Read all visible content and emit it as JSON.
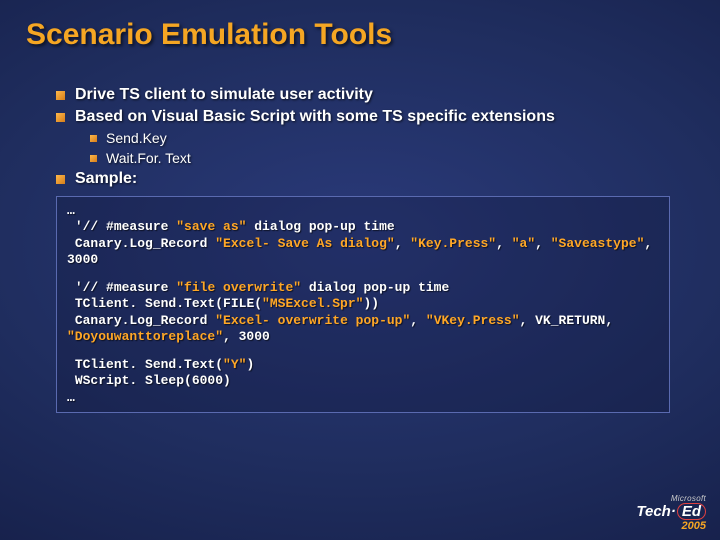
{
  "title": "Scenario Emulation Tools",
  "bullets": {
    "b1": "Drive TS client to simulate user activity",
    "b2": "Based on Visual Basic Script with some TS specific extensions",
    "b2a": "Send.Key",
    "b2b": "Wait.For. Text",
    "b3": "Sample:"
  },
  "code": {
    "l0": "…",
    "l1a": " '// #measure ",
    "l1b": "\"save as\"",
    "l1c": " dialog pop-up time",
    "l2a": " Canary.Log_Record ",
    "l2b": "\"Excel- Save As dialog\"",
    "l2c": ", ",
    "l2d": "\"Key.Press\"",
    "l2e": ", ",
    "l2f": "\"a\"",
    "l2g": ", ",
    "l2h": "\"Saveastype\"",
    "l2i": ", 3000",
    "l3a": " '// #measure ",
    "l3b": "\"file overwrite\"",
    "l3c": " dialog pop-up time",
    "l4a": " TClient. Send.Text(FILE(",
    "l4b": "\"MSExcel.Spr\"",
    "l4c": "))",
    "l5a": " Canary.Log_Record ",
    "l5b": "\"Excel- overwrite pop-up\"",
    "l5c": ", ",
    "l5d": "\"VKey.Press\"",
    "l5e": ", VK_RETURN, ",
    "l5f": "\"Doyouwanttoreplace\"",
    "l5g": ", 3000",
    "l6a": " TClient. Send.Text(",
    "l6b": "\"Y\"",
    "l6c": ")",
    "l7": " WScript. Sleep(6000)",
    "l8": "…"
  },
  "logo": {
    "ms": "Microsoft",
    "tech": "Tech·",
    "ed": "Ed",
    "year": "2005"
  },
  "colors": {
    "accent": "#f5a623",
    "highlight": "#ffa726",
    "border": "#5a6ab0",
    "bg_outer": "#0c1330",
    "bg_inner": "#2a3a7a"
  }
}
